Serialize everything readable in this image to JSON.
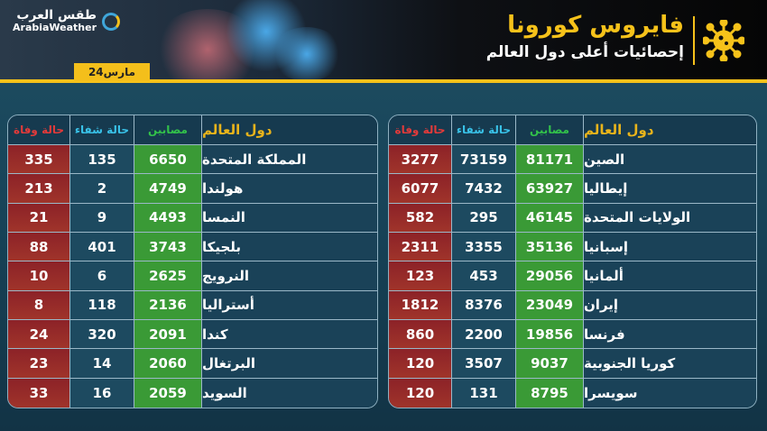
{
  "header": {
    "title": "فايروس كورونا",
    "subtitle": "إحصائيات أعلى دول العالم",
    "date": "24مارس",
    "logo_ar": "طقس العرب",
    "logo_en": "ArabiaWeather",
    "accent": "#f6c21a"
  },
  "columns": {
    "country": "دول العالم",
    "infected": "مصابين",
    "recovered": "حالة شفاء",
    "deaths": "حالة وفاة"
  },
  "colors": {
    "deaths": "#e23a3a",
    "recovered": "#39c2e8",
    "infected": "#32c24a",
    "country": "#e9b41b"
  },
  "right_table": [
    {
      "country": "الصين",
      "infected": "81171",
      "recovered": "73159",
      "deaths": "3277"
    },
    {
      "country": "إيطاليا",
      "infected": "63927",
      "recovered": "7432",
      "deaths": "6077"
    },
    {
      "country": "الولايات المتحدة",
      "infected": "46145",
      "recovered": "295",
      "deaths": "582"
    },
    {
      "country": "إسبانيا",
      "infected": "35136",
      "recovered": "3355",
      "deaths": "2311"
    },
    {
      "country": "ألمانيا",
      "infected": "29056",
      "recovered": "453",
      "deaths": "123"
    },
    {
      "country": "إيران",
      "infected": "23049",
      "recovered": "8376",
      "deaths": "1812"
    },
    {
      "country": "فرنسا",
      "infected": "19856",
      "recovered": "2200",
      "deaths": "860"
    },
    {
      "country": "كوريا الجنوبية",
      "infected": "9037",
      "recovered": "3507",
      "deaths": "120"
    },
    {
      "country": "سويسرا",
      "infected": "8795",
      "recovered": "131",
      "deaths": "120"
    }
  ],
  "left_table": [
    {
      "country": "المملكة المتحدة",
      "infected": "6650",
      "recovered": "135",
      "deaths": "335"
    },
    {
      "country": "هولندا",
      "infected": "4749",
      "recovered": "2",
      "deaths": "213"
    },
    {
      "country": "النمسا",
      "infected": "4493",
      "recovered": "9",
      "deaths": "21"
    },
    {
      "country": "بلجيكا",
      "infected": "3743",
      "recovered": "401",
      "deaths": "88"
    },
    {
      "country": "النرويج",
      "infected": "2625",
      "recovered": "6",
      "deaths": "10"
    },
    {
      "country": "أستراليا",
      "infected": "2136",
      "recovered": "118",
      "deaths": "8"
    },
    {
      "country": "كندا",
      "infected": "2091",
      "recovered": "320",
      "deaths": "24"
    },
    {
      "country": "البرتغال",
      "infected": "2060",
      "recovered": "14",
      "deaths": "23"
    },
    {
      "country": "السويد",
      "infected": "2059",
      "recovered": "16",
      "deaths": "33"
    }
  ]
}
